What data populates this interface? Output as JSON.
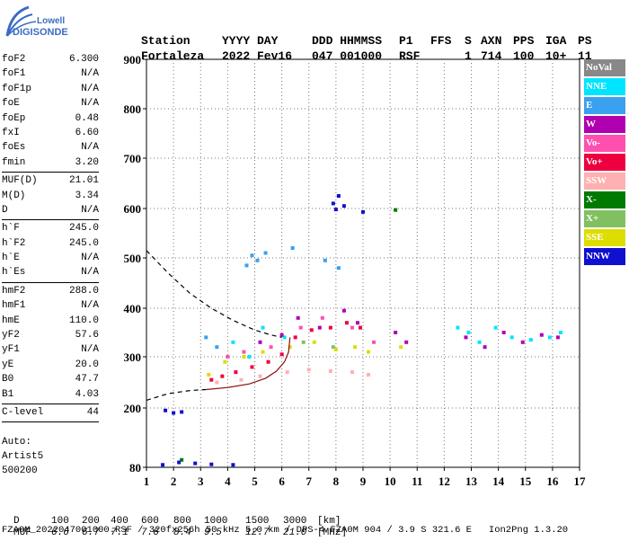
{
  "logo": {
    "line1": "Lowell",
    "line2": "DIGISONDE"
  },
  "header": {
    "labels": [
      "Station",
      "YYYY DAY",
      "DDD HHMMSS",
      "P1",
      "FFS",
      "S",
      "AXN",
      "PPS",
      "IGA",
      "PS"
    ],
    "values": [
      "Fortaleza",
      "2022 Fev16",
      "047 001000",
      "RSF",
      "",
      "1",
      "714",
      "100",
      "10+",
      "11"
    ]
  },
  "params": [
    {
      "group": [
        {
          "name": "foF2",
          "value": "6.300"
        },
        {
          "name": "foF1",
          "value": "N/A"
        },
        {
          "name": "foF1p",
          "value": "N/A"
        },
        {
          "name": "foE",
          "value": "N/A"
        },
        {
          "name": "foEp",
          "value": "0.48"
        },
        {
          "name": "fxI",
          "value": "6.60"
        },
        {
          "name": "foEs",
          "value": "N/A"
        },
        {
          "name": "fmin",
          "value": "3.20"
        }
      ]
    },
    {
      "group": [
        {
          "name": "MUF(D)",
          "value": "21.01"
        },
        {
          "name": "M(D)",
          "value": "3.34"
        },
        {
          "name": "D",
          "value": "N/A"
        }
      ]
    },
    {
      "group": [
        {
          "name": "h`F",
          "value": "245.0"
        },
        {
          "name": "h`F2",
          "value": "245.0"
        },
        {
          "name": "h`E",
          "value": "N/A"
        },
        {
          "name": "h`Es",
          "value": "N/A"
        }
      ]
    },
    {
      "group": [
        {
          "name": "hmF2",
          "value": "288.0"
        },
        {
          "name": "hmF1",
          "value": "N/A"
        },
        {
          "name": "hmE",
          "value": "110.0"
        },
        {
          "name": "yF2",
          "value": "57.6"
        },
        {
          "name": "yF1",
          "value": "N/A"
        },
        {
          "name": "yE",
          "value": "20.0"
        },
        {
          "name": "B0",
          "value": "47.7"
        },
        {
          "name": "B1",
          "value": "4.03"
        }
      ]
    },
    {
      "group": [
        {
          "name": "C-level",
          "value": "44"
        }
      ]
    }
  ],
  "auto": {
    "line1": "Auto:",
    "line2": "Artist5",
    "line3": "500200"
  },
  "legend": [
    {
      "label": "NoVal",
      "color": "#888888",
      "text_color": "#ffffff"
    },
    {
      "label": "NNE",
      "color": "#00e5ff",
      "text_color": "#ffffff"
    },
    {
      "label": "E",
      "color": "#3aa0f0",
      "text_color": "#ffffff"
    },
    {
      "label": "W",
      "color": "#b000b0",
      "text_color": "#ffffff"
    },
    {
      "label": "Vo-",
      "color": "#ff50b0",
      "text_color": "#ffffff"
    },
    {
      "label": "Vo+",
      "color": "#ee0040",
      "text_color": "#ffffff"
    },
    {
      "label": "SSW",
      "color": "#ffb0b0",
      "text_color": "#ffffff"
    },
    {
      "label": "X-",
      "color": "#007a00",
      "text_color": "#ffffff"
    },
    {
      "label": "X+",
      "color": "#80c060",
      "text_color": "#ffffff"
    },
    {
      "label": "SSE",
      "color": "#dddd00",
      "text_color": "#ffffff"
    },
    {
      "label": "NNW",
      "color": "#1010d0",
      "text_color": "#ffffff"
    }
  ],
  "chart_data": {
    "type": "scatter",
    "title": "",
    "xlabel": "",
    "ylabel": "",
    "xlim": [
      1,
      17
    ],
    "ylim": [
      80,
      900
    ],
    "x_ticks": [
      1,
      2,
      3,
      4,
      5,
      6,
      7,
      8,
      9,
      10,
      11,
      12,
      13,
      14,
      15,
      16,
      17
    ],
    "y_ticks": [
      80,
      200,
      300,
      400,
      500,
      600,
      700,
      800,
      900
    ],
    "y_scale": "ionogram (compressed below 300 km)",
    "grid": true,
    "grid_style": "dotted",
    "legend_position": "right",
    "series": [
      {
        "label": "NNE",
        "points": [
          [
            4.2,
            330
          ],
          [
            4.8,
            300
          ],
          [
            5.3,
            360
          ],
          [
            6.1,
            340
          ],
          [
            12.5,
            360
          ],
          [
            12.9,
            350
          ],
          [
            13.3,
            330
          ],
          [
            13.9,
            360
          ],
          [
            14.5,
            340
          ],
          [
            15.2,
            335
          ],
          [
            15.9,
            340
          ],
          [
            16.3,
            350
          ]
        ]
      },
      {
        "label": "E",
        "points": [
          [
            4.9,
            505
          ],
          [
            5.1,
            495
          ],
          [
            5.4,
            510
          ],
          [
            4.7,
            485
          ],
          [
            6.4,
            520
          ],
          [
            7.6,
            495
          ],
          [
            8.1,
            480
          ],
          [
            3.2,
            340
          ],
          [
            3.6,
            320
          ]
        ]
      },
      {
        "label": "W",
        "points": [
          [
            5.2,
            330
          ],
          [
            6.0,
            345
          ],
          [
            6.6,
            380
          ],
          [
            7.4,
            360
          ],
          [
            8.3,
            395
          ],
          [
            8.8,
            370
          ],
          [
            10.2,
            350
          ],
          [
            10.6,
            330
          ],
          [
            12.8,
            340
          ],
          [
            13.5,
            320
          ],
          [
            14.2,
            350
          ],
          [
            14.9,
            330
          ],
          [
            15.6,
            345
          ],
          [
            16.2,
            340
          ]
        ]
      },
      {
        "label": "Vo-",
        "points": [
          [
            4.0,
            300
          ],
          [
            4.6,
            310
          ],
          [
            5.6,
            320
          ],
          [
            6.7,
            360
          ],
          [
            7.5,
            380
          ],
          [
            8.6,
            360
          ],
          [
            9.4,
            330
          ]
        ]
      },
      {
        "label": "Vo+",
        "points": [
          [
            3.4,
            255
          ],
          [
            3.8,
            262
          ],
          [
            4.3,
            270
          ],
          [
            4.9,
            280
          ],
          [
            5.5,
            290
          ],
          [
            6.0,
            305
          ],
          [
            6.5,
            340
          ],
          [
            7.1,
            355
          ],
          [
            7.8,
            360
          ],
          [
            8.4,
            370
          ],
          [
            8.9,
            360
          ]
        ]
      },
      {
        "label": "SSW",
        "points": [
          [
            3.6,
            250
          ],
          [
            4.5,
            255
          ],
          [
            5.2,
            262
          ],
          [
            6.2,
            270
          ],
          [
            7.0,
            275
          ],
          [
            7.8,
            272
          ],
          [
            8.6,
            270
          ],
          [
            9.2,
            265
          ]
        ]
      },
      {
        "label": "X-",
        "points": [
          [
            10.2,
            597
          ],
          [
            2.3,
            95
          ]
        ]
      },
      {
        "label": "X+",
        "points": [
          [
            6.8,
            330
          ],
          [
            7.9,
            320
          ]
        ]
      },
      {
        "label": "SSE",
        "points": [
          [
            3.3,
            265
          ],
          [
            3.9,
            290
          ],
          [
            4.6,
            300
          ],
          [
            5.3,
            310
          ],
          [
            6.3,
            320
          ],
          [
            7.2,
            330
          ],
          [
            8.0,
            315
          ],
          [
            8.7,
            320
          ],
          [
            9.2,
            310
          ],
          [
            10.4,
            320
          ]
        ]
      },
      {
        "label": "NNW",
        "points": [
          [
            7.9,
            610
          ],
          [
            8.1,
            625
          ],
          [
            8.3,
            605
          ],
          [
            8.0,
            598
          ],
          [
            9.0,
            593
          ],
          [
            1.7,
            195
          ],
          [
            2.0,
            190
          ],
          [
            2.3,
            192
          ],
          [
            1.6,
            85
          ],
          [
            2.2,
            90
          ],
          [
            2.8,
            88
          ],
          [
            3.4,
            86
          ],
          [
            4.2,
            85
          ]
        ]
      }
    ],
    "traces": [
      {
        "name": "dashed_upper",
        "style": "dashed",
        "points": [
          [
            1.0,
            515
          ],
          [
            1.8,
            470
          ],
          [
            2.6,
            430
          ],
          [
            3.4,
            400
          ],
          [
            4.2,
            375
          ],
          [
            5.0,
            355
          ],
          [
            5.6,
            345
          ],
          [
            6.0,
            340
          ]
        ]
      },
      {
        "name": "dashed_lower",
        "style": "dashed",
        "points": [
          [
            1.0,
            215
          ],
          [
            1.8,
            228
          ],
          [
            2.6,
            234
          ],
          [
            3.2,
            236
          ]
        ]
      },
      {
        "name": "solid_profile",
        "style": "solid",
        "points": [
          [
            3.2,
            236
          ],
          [
            4.0,
            240
          ],
          [
            4.8,
            247
          ],
          [
            5.4,
            258
          ],
          [
            5.8,
            272
          ],
          [
            6.1,
            290
          ],
          [
            6.25,
            310
          ],
          [
            6.3,
            340
          ]
        ]
      }
    ]
  },
  "footer": {
    "d_label": "D",
    "d_values": [
      "100",
      "200",
      "400",
      "600",
      "800",
      "1000",
      "1500",
      "3000",
      "[km]"
    ],
    "muf_label": "MUF",
    "muf_values": [
      "6.6",
      "6.7",
      "7.1",
      "7.6",
      "8.4",
      "9.5",
      "12.7",
      "21.0",
      "[MHz]"
    ],
    "info": "FZA0M_2022047001000.RSF / 320fx256h 50 kHz 5.0 km / DPS-4 FZA0M 904 / 3.9 S 321.6 E   Ion2Png 1.3.20"
  }
}
